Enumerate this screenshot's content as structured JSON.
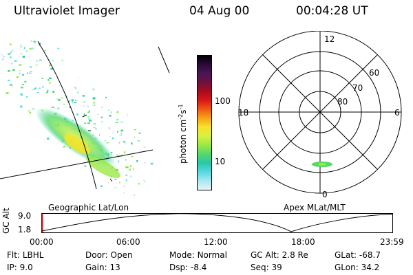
{
  "header": {
    "title": "Ultraviolet Imager",
    "date": "04 Aug 00",
    "time": "00:04:28 UT"
  },
  "colorbar": {
    "unit_label": "photon cm",
    "unit_sup1": "-2",
    "unit_mid": "s",
    "unit_sup2": "-1",
    "tick_100": "100",
    "tick_10": "10",
    "colors": [
      "#000000",
      "#2a0a3a",
      "#4a1656",
      "#70103e",
      "#a80c1a",
      "#d81818",
      "#f05a14",
      "#f7a418",
      "#f6e42a",
      "#d8f040",
      "#9be848",
      "#55d86a",
      "#28c8a8",
      "#58d8e0",
      "#a8e8f0",
      "#e8f4f8"
    ]
  },
  "geo_panel": {
    "label": "Geographic Lat/Lon"
  },
  "polar": {
    "label": "Apex MLat/MLT",
    "mlt_labels": {
      "top": "12",
      "left": "18",
      "right": "6",
      "bottom": "0"
    },
    "lat_labels": [
      "60",
      "70",
      "80"
    ]
  },
  "altitude": {
    "axis_label": "GC Alt",
    "ticks": [
      "9.0",
      "1.8"
    ],
    "time_ticks": [
      "00:00",
      "06:00",
      "12:00",
      "18:00",
      "23:59"
    ]
  },
  "footer": {
    "rows": [
      [
        {
          "key": "Flt:",
          "val": "LBHL"
        },
        {
          "key": "Door:",
          "val": "Open"
        },
        {
          "key": "Mode:",
          "val": "Normal"
        },
        {
          "key": "GC Alt:",
          "val": "2.8 Re"
        },
        {
          "key": "GLat:",
          "val": "-68.7"
        }
      ],
      [
        {
          "key": "IP:",
          "val": "9.0"
        },
        {
          "key": "Gain:",
          "val": "13"
        },
        {
          "key": "Dsp:",
          "val": "-8.4"
        },
        {
          "key": "Seq:",
          "val": "39"
        },
        {
          "key": "GLon:",
          "val": "34.2"
        }
      ]
    ]
  }
}
